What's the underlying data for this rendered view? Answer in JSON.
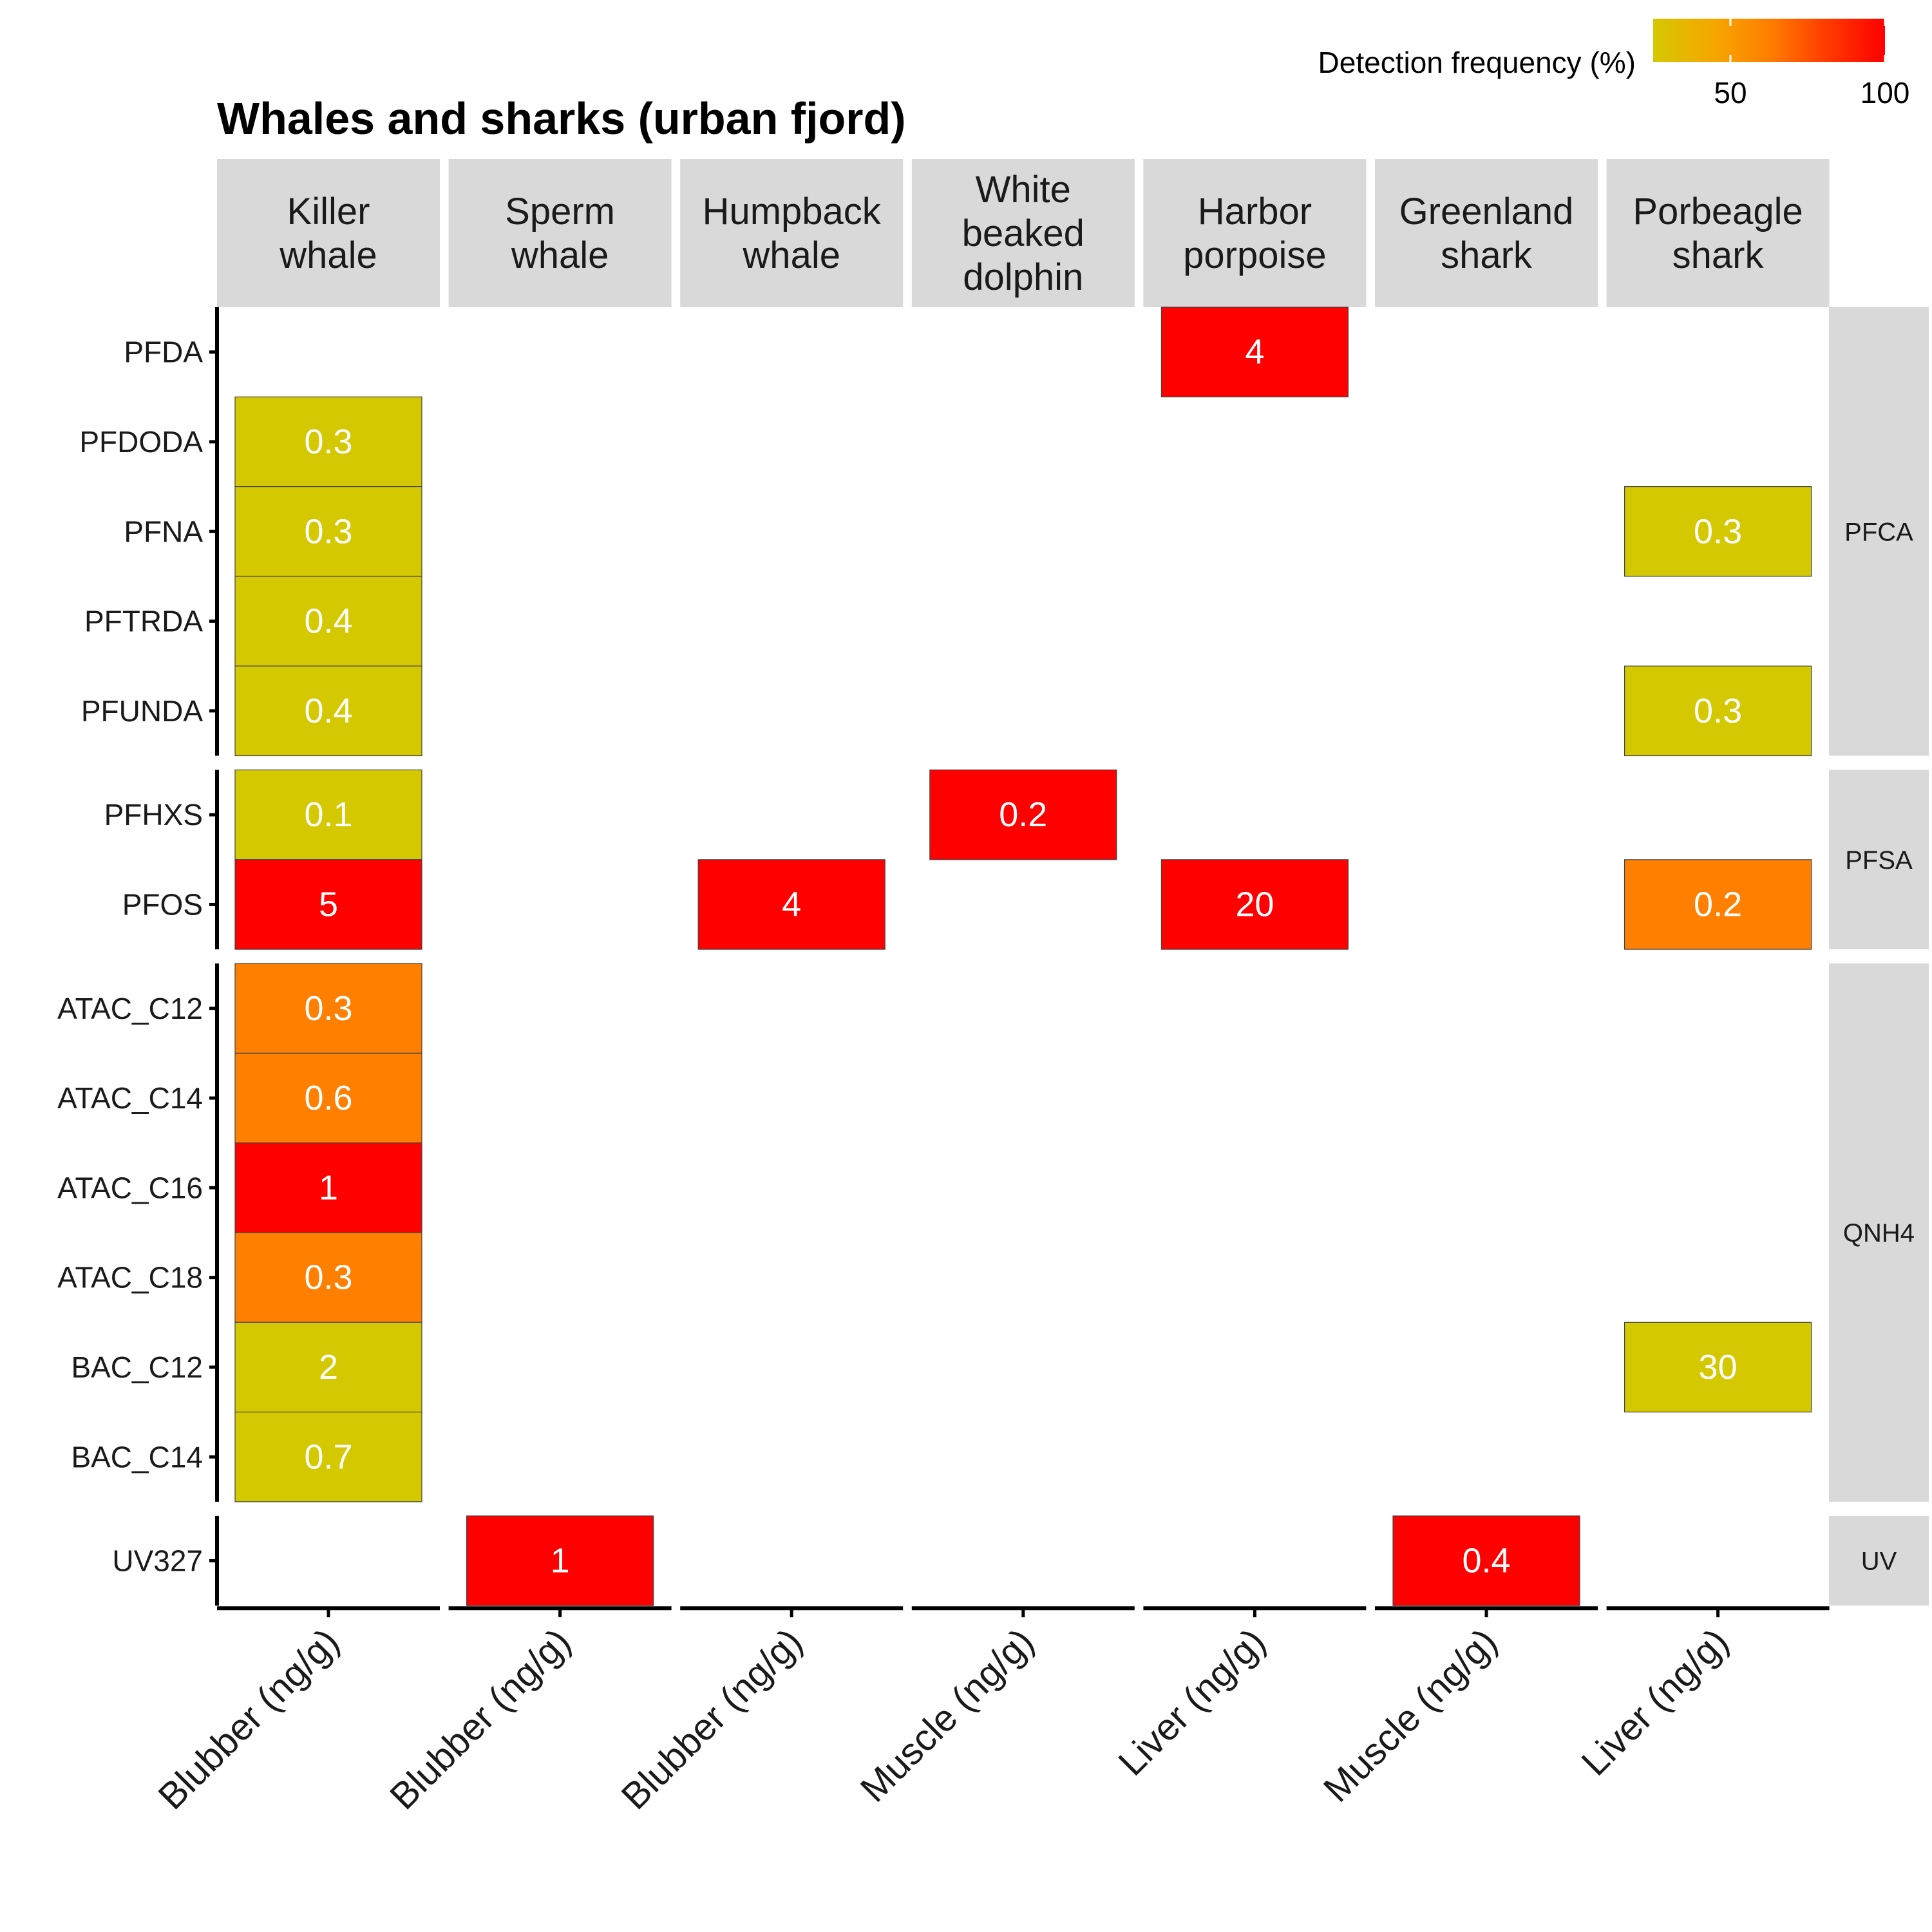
{
  "chart_data": {
    "type": "heatmap",
    "title": "Whales and sharks (urban fjord)",
    "legend": {
      "title": "Detection frequency (%)",
      "ticks": [
        50,
        100
      ],
      "range": [
        25,
        100
      ],
      "colors": [
        "#D4C800",
        "#F5A800",
        "#FF7F00",
        "#FF3A00",
        "#FF0000"
      ],
      "placement": "top-right"
    },
    "columns": [
      {
        "species": [
          "Killer",
          "whale"
        ],
        "tissue": "Blubber (ng/g)"
      },
      {
        "species": [
          "Sperm",
          "whale"
        ],
        "tissue": "Blubber (ng/g)"
      },
      {
        "species": [
          "Humpback",
          "whale"
        ],
        "tissue": "Blubber (ng/g)"
      },
      {
        "species": [
          "White",
          "beaked",
          "dolphin"
        ],
        "tissue": "Muscle (ng/g)"
      },
      {
        "species": [
          "Harbor",
          "porpoise"
        ],
        "tissue": "Liver (ng/g)"
      },
      {
        "species": [
          "Greenland",
          "shark"
        ],
        "tissue": "Muscle (ng/g)"
      },
      {
        "species": [
          "Porbeagle",
          "shark"
        ],
        "tissue": "Liver (ng/g)"
      }
    ],
    "groups": [
      {
        "name": "PFCA",
        "rows": [
          "PFDA",
          "PFDODA",
          "PFNA",
          "PFTRDA",
          "PFUNDA"
        ]
      },
      {
        "name": "PFSA",
        "rows": [
          "PFHXS",
          "PFOS"
        ]
      },
      {
        "name": "QNH4",
        "rows": [
          "ATAC_C12",
          "ATAC_C14",
          "ATAC_C16",
          "ATAC_C18",
          "BAC_C12",
          "BAC_C14"
        ]
      },
      {
        "name": "UV",
        "rows": [
          "UV327"
        ]
      }
    ],
    "cells": [
      {
        "row": "PFDA",
        "col": 4,
        "label": "4",
        "detection": 100
      },
      {
        "row": "PFDODA",
        "col": 0,
        "label": "0.3",
        "detection": 25
      },
      {
        "row": "PFNA",
        "col": 0,
        "label": "0.3",
        "detection": 25
      },
      {
        "row": "PFNA",
        "col": 6,
        "label": "0.3",
        "detection": 25
      },
      {
        "row": "PFTRDA",
        "col": 0,
        "label": "0.4",
        "detection": 25
      },
      {
        "row": "PFUNDA",
        "col": 0,
        "label": "0.4",
        "detection": 25
      },
      {
        "row": "PFUNDA",
        "col": 6,
        "label": "0.3",
        "detection": 25
      },
      {
        "row": "PFHXS",
        "col": 0,
        "label": "0.1",
        "detection": 25
      },
      {
        "row": "PFHXS",
        "col": 3,
        "label": "0.2",
        "detection": 100
      },
      {
        "row": "PFOS",
        "col": 0,
        "label": "5",
        "detection": 100
      },
      {
        "row": "PFOS",
        "col": 2,
        "label": "4",
        "detection": 100
      },
      {
        "row": "PFOS",
        "col": 4,
        "label": "20",
        "detection": 100
      },
      {
        "row": "PFOS",
        "col": 6,
        "label": "0.2",
        "detection": 62.5
      },
      {
        "row": "ATAC_C12",
        "col": 0,
        "label": "0.3",
        "detection": 62.5
      },
      {
        "row": "ATAC_C14",
        "col": 0,
        "label": "0.6",
        "detection": 62.5
      },
      {
        "row": "ATAC_C16",
        "col": 0,
        "label": "1",
        "detection": 100
      },
      {
        "row": "ATAC_C18",
        "col": 0,
        "label": "0.3",
        "detection": 62.5
      },
      {
        "row": "BAC_C12",
        "col": 0,
        "label": "2",
        "detection": 25
      },
      {
        "row": "BAC_C12",
        "col": 6,
        "label": "30",
        "detection": 25
      },
      {
        "row": "BAC_C14",
        "col": 0,
        "label": "0.7",
        "detection": 25
      },
      {
        "row": "UV327",
        "col": 1,
        "label": "1",
        "detection": 100
      },
      {
        "row": "UV327",
        "col": 5,
        "label": "0.4",
        "detection": 100
      }
    ]
  }
}
